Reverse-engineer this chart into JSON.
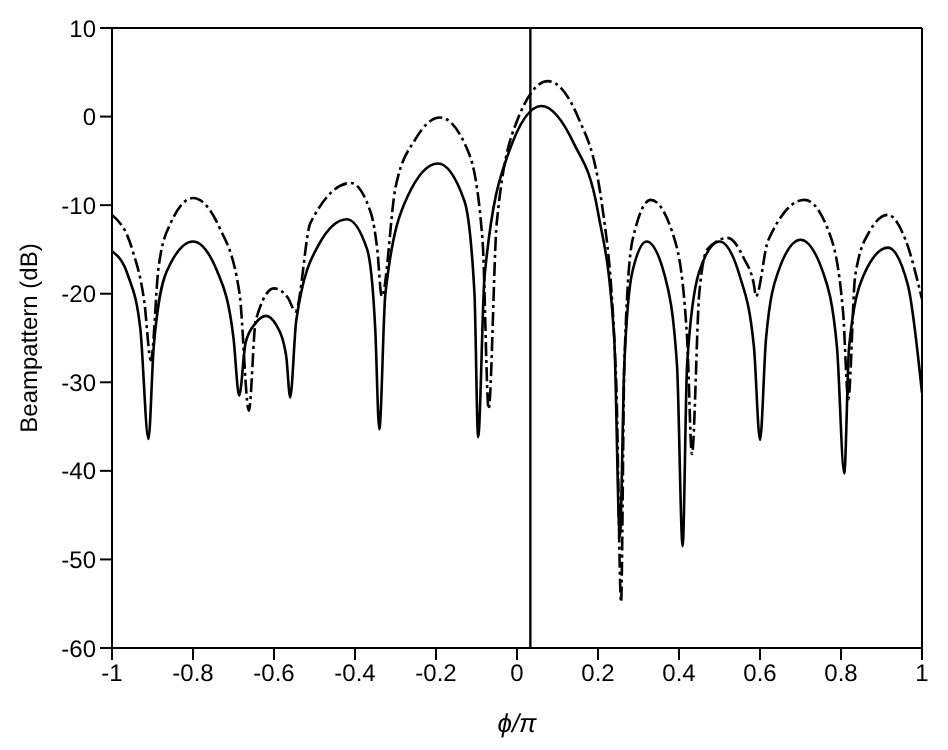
{
  "chart_data": {
    "type": "line",
    "xlabel": "ϕ/π",
    "ylabel": "Beampattern (dB)",
    "xlim": [
      -1,
      1
    ],
    "xticks": [
      -1,
      -0.8,
      -0.6,
      -0.4,
      -0.2,
      0,
      0.2,
      0.4,
      0.6,
      0.8,
      1
    ],
    "ylim": [
      -60,
      10
    ],
    "yticks": [
      -60,
      -50,
      -40,
      -30,
      -20,
      -10,
      0,
      10
    ],
    "marker": "none",
    "ref_lines": [
      {
        "axis": "x",
        "value": 0.033,
        "color": "#000000"
      }
    ],
    "series": [
      {
        "color": "#000000",
        "line_style": "solid",
        "x": [
          -1,
          -0.96,
          -0.93,
          -0.91,
          -0.897,
          -0.865,
          -0.8,
          -0.74,
          -0.7,
          -0.686,
          -0.67,
          -0.645,
          -0.62,
          -0.595,
          -0.57,
          -0.56,
          -0.545,
          -0.49,
          -0.42,
          -0.37,
          -0.35,
          -0.34,
          -0.325,
          -0.27,
          -0.195,
          -0.13,
          -0.105,
          -0.096,
          -0.08,
          -0.02,
          0.06,
          0.14,
          0.2,
          0.24,
          0.254,
          0.265,
          0.285,
          0.32,
          0.365,
          0.395,
          0.409,
          0.42,
          0.45,
          0.5,
          0.55,
          0.585,
          0.6,
          0.615,
          0.645,
          0.7,
          0.755,
          0.79,
          0.808,
          0.82,
          0.855,
          0.916,
          0.965,
          1
        ],
        "values": [
          -15.2,
          -18,
          -24,
          -36.4,
          -26,
          -17.5,
          -14.1,
          -17.5,
          -25,
          -31.5,
          -25.5,
          -23.3,
          -22.5,
          -23.5,
          -27,
          -31.7,
          -23,
          -14.5,
          -11.6,
          -15,
          -24,
          -35.3,
          -20,
          -9,
          -5.3,
          -9.5,
          -20,
          -36.2,
          -18,
          -4,
          1.2,
          -3,
          -10.8,
          -25,
          -47.4,
          -28,
          -17.5,
          -14.1,
          -18,
          -28,
          -48.5,
          -28,
          -17.5,
          -14.1,
          -18,
          -26,
          -36.5,
          -25,
          -17.5,
          -13.9,
          -17.5,
          -26,
          -40.3,
          -26,
          -18,
          -14.8,
          -19,
          -31.2
        ]
      },
      {
        "color": "#000000",
        "line_style": "dashed",
        "x": [
          -1,
          -0.95,
          -0.92,
          -0.904,
          -0.885,
          -0.855,
          -0.8,
          -0.735,
          -0.685,
          -0.662,
          -0.645,
          -0.6,
          -0.565,
          -0.547,
          -0.51,
          -0.41,
          -0.36,
          -0.345,
          -0.334,
          -0.3,
          -0.25,
          -0.19,
          -0.12,
          -0.085,
          -0.07,
          -0.05,
          0,
          0.076,
          0.15,
          0.21,
          0.245,
          0.257,
          0.265,
          0.285,
          0.33,
          0.39,
          0.42,
          0.432,
          0.45,
          0.47,
          0.52,
          0.56,
          0.585,
          0.59,
          0.62,
          0.71,
          0.77,
          0.805,
          0.818,
          0.835,
          0.87,
          0.916,
          0.96,
          1
        ],
        "values": [
          -11.1,
          -15,
          -21,
          -27.5,
          -17,
          -12,
          -9.2,
          -12.5,
          -20,
          -33.2,
          -23,
          -19.4,
          -20.5,
          -22,
          -12,
          -7.5,
          -11,
          -15,
          -20.3,
          -8,
          -2.5,
          -0.1,
          -4,
          -14,
          -33,
          -12,
          -0.5,
          4,
          0,
          -10,
          -30,
          -54.8,
          -28,
          -14,
          -9.4,
          -14,
          -25,
          -38.1,
          -20,
          -15,
          -13.7,
          -16,
          -19,
          -20.3,
          -14,
          -9.4,
          -13,
          -22,
          -31.9,
          -18,
          -13,
          -11.1,
          -14,
          -20.6
        ]
      }
    ]
  }
}
